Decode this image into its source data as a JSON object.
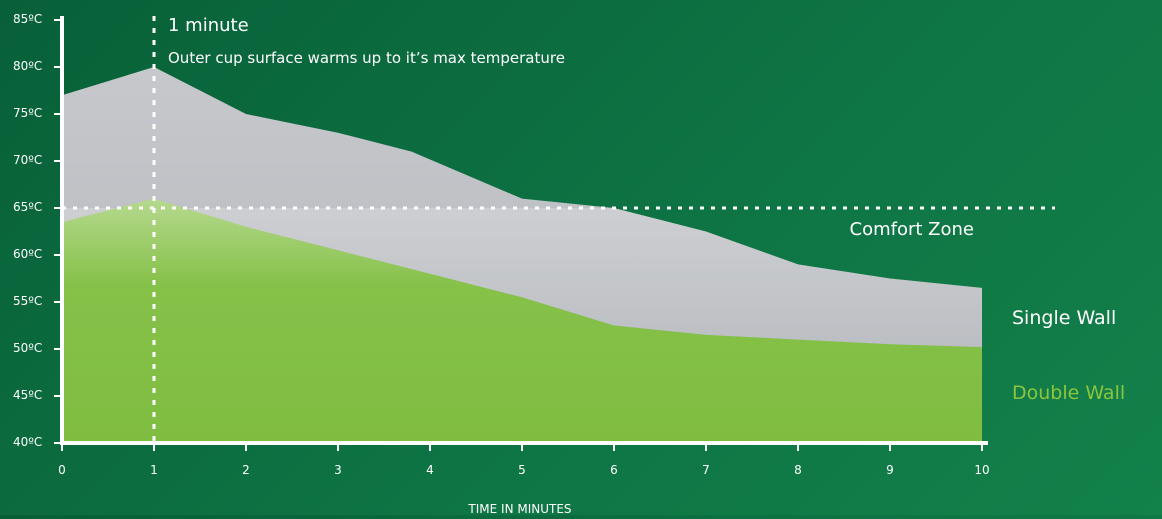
{
  "chart_data": {
    "type": "area",
    "xlabel": "TIME IN MINUTES",
    "ylabel": "",
    "x": [
      0,
      1,
      2,
      3,
      4,
      5,
      6,
      7,
      8,
      9,
      10
    ],
    "xlim": [
      0,
      10
    ],
    "ylim": [
      40,
      85
    ],
    "x_ticks": [
      "0",
      "1",
      "2",
      "3",
      "4",
      "5",
      "6",
      "7",
      "8",
      "9",
      "10"
    ],
    "y_ticks": [
      {
        "value": 40,
        "label": "40ºC"
      },
      {
        "value": 45,
        "label": "45ºC"
      },
      {
        "value": 50,
        "label": "50ºC"
      },
      {
        "value": 55,
        "label": "55ºC"
      },
      {
        "value": 60,
        "label": "60ºC"
      },
      {
        "value": 65,
        "label": "65ºC"
      },
      {
        "value": 70,
        "label": "70ºC"
      },
      {
        "value": 75,
        "label": "75ºC"
      },
      {
        "value": 80,
        "label": "80ºC"
      },
      {
        "value": 85,
        "label": "85ºC"
      }
    ],
    "series": [
      {
        "name": "Single Wall",
        "color": "#ffffff",
        "fill_color": "#b9bcc1",
        "points": [
          [
            0,
            77
          ],
          [
            1,
            80
          ],
          [
            2,
            75
          ],
          [
            3,
            73
          ],
          [
            3.8,
            71
          ],
          [
            5,
            66
          ],
          [
            6,
            65
          ],
          [
            7,
            62.5
          ],
          [
            8,
            59
          ],
          [
            9,
            57.5
          ],
          [
            10,
            56.5
          ]
        ]
      },
      {
        "name": "Double Wall",
        "color": "#8dc53e",
        "fill_color": "#7fbd41",
        "points": [
          [
            0,
            63.5
          ],
          [
            1,
            66
          ],
          [
            2,
            63
          ],
          [
            3,
            60.5
          ],
          [
            4,
            58
          ],
          [
            5,
            55.5
          ],
          [
            6,
            52.5
          ],
          [
            7,
            51.5
          ],
          [
            8,
            51
          ],
          [
            9,
            50.5
          ],
          [
            10,
            50.2
          ]
        ]
      }
    ],
    "reference_line": {
      "y": 65,
      "label": "Comfort Zone"
    },
    "annotation": {
      "x": 1,
      "title": "1 minute",
      "text": "Outer cup surface warms up to it’s max temperature"
    },
    "grid": false,
    "legend": "right"
  }
}
